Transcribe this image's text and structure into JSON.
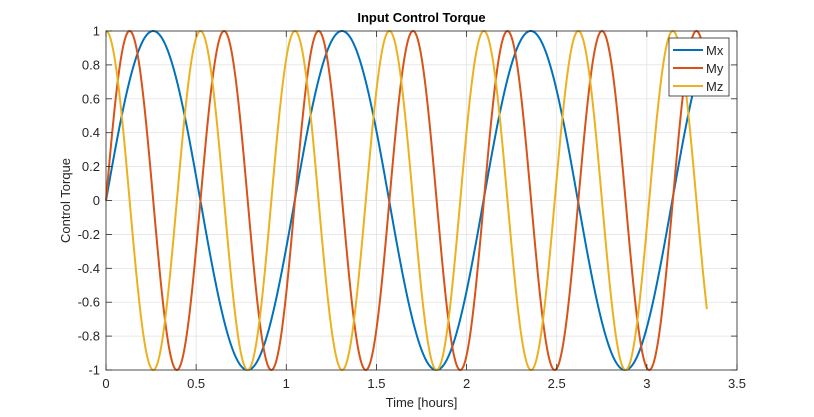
{
  "chart_data": {
    "type": "line",
    "title": "Input Control Torque",
    "xlabel": "Time [hours]",
    "ylabel": "Control Torque",
    "xlim": [
      0,
      3.5
    ],
    "ylim": [
      -1,
      1
    ],
    "x_ticks": [
      0,
      0.5,
      1,
      1.5,
      2,
      2.5,
      3,
      3.5
    ],
    "x_tick_labels": [
      "0",
      "0.5",
      "1",
      "1.5",
      "2",
      "2.5",
      "3",
      "3.5"
    ],
    "y_ticks": [
      -1,
      -0.8,
      -0.6,
      -0.4,
      -0.2,
      0,
      0.2,
      0.4,
      0.6,
      0.8,
      1
    ],
    "y_tick_labels": [
      "-1",
      "-0.8",
      "-0.6",
      "-0.4",
      "-0.2",
      "0",
      "0.2",
      "0.4",
      "0.6",
      "0.8",
      "1"
    ],
    "grid": true,
    "legend_location": "top-right",
    "x_range_data": [
      0,
      3.333
    ],
    "series": [
      {
        "name": "Mx",
        "color": "#0072BD",
        "form": "sin",
        "amplitude": 1,
        "period_hours": 1.047
      },
      {
        "name": "My",
        "color": "#D95319",
        "form": "sin",
        "amplitude": 1,
        "period_hours": 0.524
      },
      {
        "name": "Mz",
        "color": "#EDB120",
        "form": "cos",
        "amplitude": 1,
        "period_hours": 0.524
      }
    ]
  }
}
